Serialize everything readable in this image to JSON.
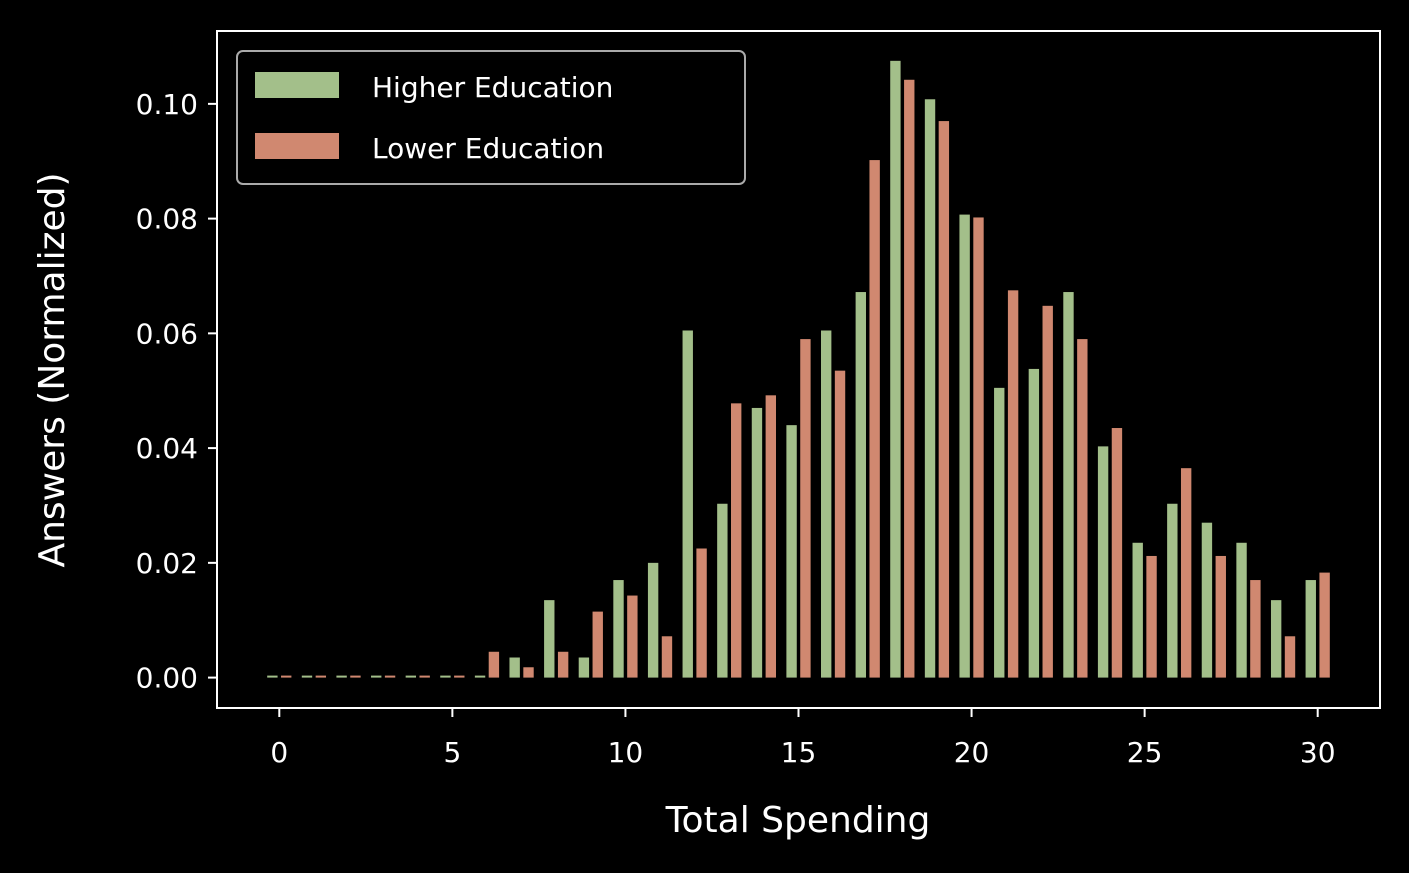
{
  "chart_data": {
    "type": "bar",
    "title": "",
    "xlabel": "Total Spending",
    "ylabel": "Answers (Normalized)",
    "xlim": [
      -1.8,
      31.8
    ],
    "ylim": [
      -0.0053,
      0.1127
    ],
    "x_ticks": [
      0,
      5,
      10,
      15,
      20,
      25,
      30
    ],
    "y_ticks": [
      0.0,
      0.02,
      0.04,
      0.06,
      0.08,
      0.1
    ],
    "y_tick_labels": [
      "0.00",
      "0.02",
      "0.04",
      "0.06",
      "0.08",
      "0.10"
    ],
    "grid": false,
    "legend_position": "top-left",
    "x": [
      0,
      1,
      2,
      3,
      4,
      5,
      6,
      7,
      8,
      9,
      10,
      11,
      12,
      13,
      14,
      15,
      16,
      17,
      18,
      19,
      20,
      21,
      22,
      23,
      24,
      25,
      26,
      27,
      28,
      29,
      30
    ],
    "series": [
      {
        "name": "Higher Education",
        "color": "#a3bf8a",
        "values": [
          0,
          0,
          0,
          0,
          0,
          0,
          0,
          0.0035,
          0.0135,
          0.0035,
          0.017,
          0.02,
          0.0605,
          0.0303,
          0.047,
          0.044,
          0.0605,
          0.0672,
          0.1075,
          0.1008,
          0.0807,
          0.0505,
          0.0538,
          0.0672,
          0.0403,
          0.0235,
          0.0303,
          0.027,
          0.0235,
          0.0135,
          0.017
        ]
      },
      {
        "name": "Lower Education",
        "color": "#d08870",
        "values": [
          0,
          0,
          0,
          0,
          0,
          0,
          0.0045,
          0.0018,
          0.0045,
          0.0115,
          0.0143,
          0.0072,
          0.0225,
          0.0478,
          0.0492,
          0.059,
          0.0535,
          0.0902,
          0.1042,
          0.097,
          0.0802,
          0.0675,
          0.0648,
          0.059,
          0.0435,
          0.0212,
          0.0365,
          0.0212,
          0.017,
          0.0072,
          0.0183
        ]
      }
    ]
  }
}
